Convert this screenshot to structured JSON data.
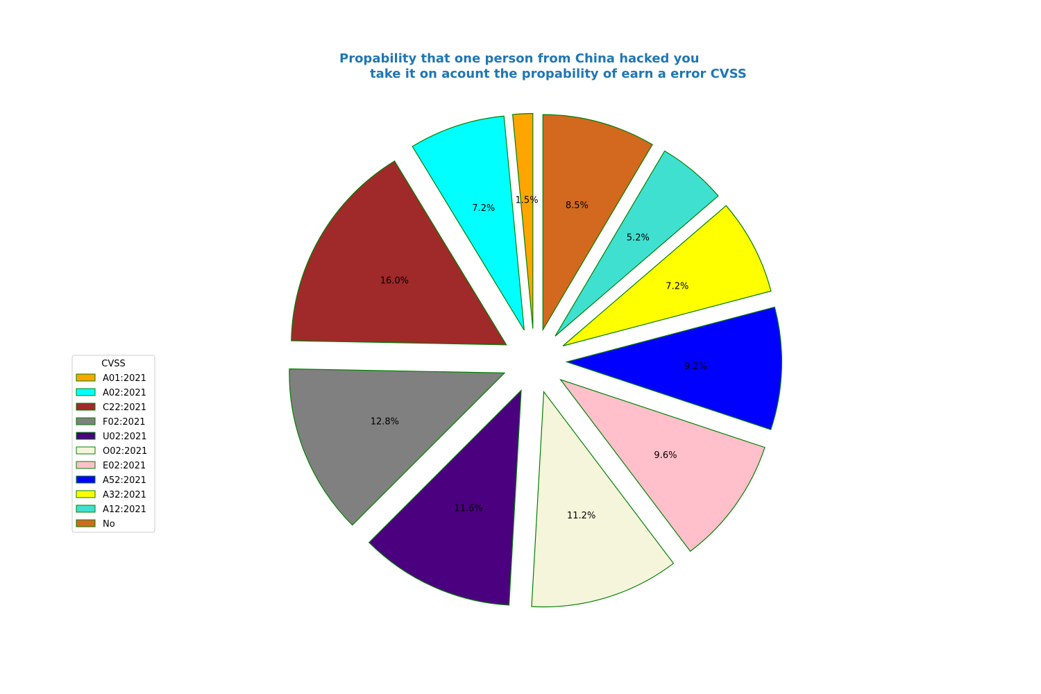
{
  "chart_data": {
    "type": "pie",
    "title_lines": [
      "Propability that one person from China hacked you",
      "take it on acount the propability of earn a error CVSS"
    ],
    "title_color": "#1f77b4",
    "edge_color": "#008000",
    "legend": {
      "title": "CVSS",
      "placement": "center-left"
    },
    "slices": [
      {
        "name": "A01:2021",
        "value": 1.5,
        "label": "1.5%",
        "color": "#ffa500"
      },
      {
        "name": "A02:2021",
        "value": 7.2,
        "label": "7.2%",
        "color": "#00ffff"
      },
      {
        "name": "C22:2021",
        "value": 16.0,
        "label": "16.0%",
        "color": "#a0292a"
      },
      {
        "name": "F02:2021",
        "value": 12.8,
        "label": "12.8%",
        "color": "#808080"
      },
      {
        "name": "U02:2021",
        "value": 11.6,
        "label": "11.6%",
        "color": "#4b0080"
      },
      {
        "name": "O02:2021",
        "value": 11.2,
        "label": "11.2%",
        "color": "#f5f5dc"
      },
      {
        "name": "E02:2021",
        "value": 9.6,
        "label": "9.6%",
        "color": "#ffc0cb"
      },
      {
        "name": "A52:2021",
        "value": 9.2,
        "label": "9.2%",
        "color": "#0000ff"
      },
      {
        "name": "A32:2021",
        "value": 7.2,
        "label": "7.2%",
        "color": "#ffff00"
      },
      {
        "name": "A12:2021",
        "value": 5.2,
        "label": "5.2%",
        "color": "#40e0d0"
      },
      {
        "name": "No",
        "value": 8.5,
        "label": "8.5%",
        "color": "#d2691e"
      }
    ]
  }
}
